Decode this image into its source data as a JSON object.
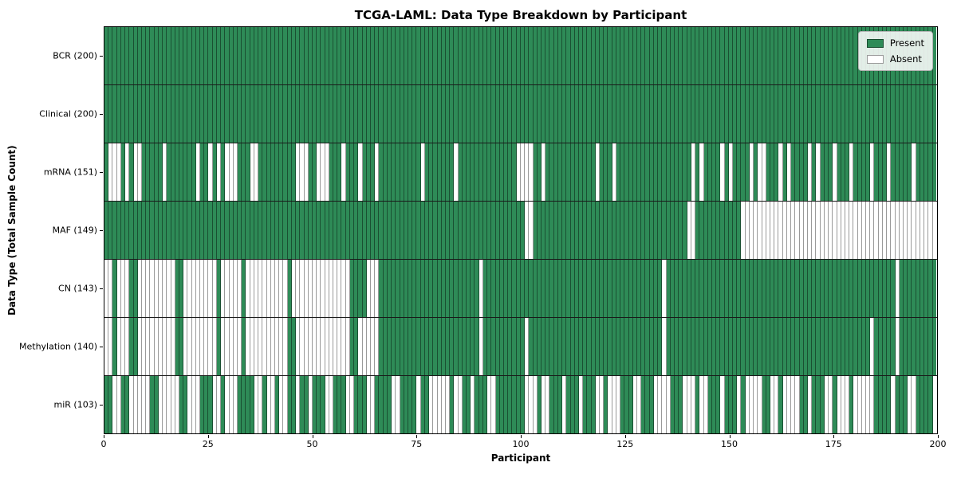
{
  "chart_data": {
    "type": "heatmap",
    "title": "TCGA-LAML: Data Type Breakdown by Participant",
    "xlabel": "Participant",
    "ylabel": "Data Type (Total Sample Count)",
    "x_ticks": [
      0,
      25,
      50,
      75,
      100,
      125,
      150,
      175,
      200
    ],
    "x_range": [
      0,
      200
    ],
    "n_participants": 200,
    "grid": false,
    "legend": {
      "position": "upper right",
      "entries": [
        {
          "label": "Present",
          "color": "#2e8b57"
        },
        {
          "label": "Absent",
          "color": "#ffffff"
        }
      ]
    },
    "colors": {
      "present": "#2e8b57",
      "absent": "#ffffff",
      "present_edge": "rgba(0,0,0,0.42)",
      "absent_edge": "#9a9a9a",
      "row_separator": "#1a1a1a",
      "plot_border": "#000000"
    },
    "value_encoding": {
      "present": 1,
      "absent": 0
    },
    "rows": [
      {
        "name": "BCR",
        "label": "BCR (200)",
        "total_present": 200,
        "absent_participants": []
      },
      {
        "name": "Clinical",
        "label": "Clinical (200)",
        "total_present": 200,
        "absent_participants": []
      },
      {
        "name": "mRNA",
        "label": "mRNA (151)",
        "total_present": 151,
        "absent_participants": [
          1,
          2,
          3,
          5,
          7,
          8,
          14,
          22,
          25,
          27,
          29,
          30,
          31,
          35,
          36,
          46,
          47,
          48,
          51,
          52,
          53,
          57,
          61,
          65,
          76,
          84,
          99,
          100,
          101,
          102,
          105,
          118,
          122,
          141,
          143,
          148,
          150,
          155,
          157,
          158,
          162,
          164,
          169,
          171,
          175,
          179,
          184,
          188,
          194
        ]
      },
      {
        "name": "MAF",
        "label": "MAF (149)",
        "total_present": 149,
        "absent_participants": [
          101,
          102,
          140,
          141,
          153,
          154,
          155,
          156,
          157,
          158,
          159,
          160,
          161,
          162,
          163,
          164,
          165,
          166,
          167,
          168,
          169,
          170,
          171,
          172,
          173,
          174,
          175,
          176,
          177,
          178,
          179,
          180,
          181,
          182,
          183,
          184,
          185,
          186,
          187,
          188,
          189,
          190,
          191,
          192,
          193,
          194,
          195,
          196,
          197,
          198,
          199
        ]
      },
      {
        "name": "CN",
        "label": "CN (143)",
        "total_present": 143,
        "absent_participants": [
          0,
          1,
          3,
          4,
          5,
          8,
          9,
          10,
          11,
          12,
          13,
          14,
          15,
          16,
          19,
          20,
          21,
          22,
          23,
          24,
          25,
          26,
          28,
          29,
          30,
          31,
          32,
          34,
          35,
          36,
          37,
          38,
          39,
          40,
          41,
          42,
          43,
          45,
          46,
          47,
          48,
          49,
          50,
          51,
          52,
          53,
          54,
          55,
          56,
          57,
          58,
          63,
          64,
          65,
          90,
          134,
          190
        ]
      },
      {
        "name": "Methylation",
        "label": "Methylation (140)",
        "total_present": 140,
        "absent_participants": [
          0,
          1,
          3,
          4,
          5,
          8,
          9,
          10,
          11,
          12,
          13,
          14,
          15,
          16,
          19,
          20,
          21,
          22,
          23,
          24,
          25,
          26,
          28,
          29,
          30,
          31,
          32,
          34,
          35,
          36,
          37,
          38,
          39,
          40,
          41,
          42,
          43,
          46,
          47,
          48,
          49,
          50,
          51,
          52,
          53,
          54,
          55,
          56,
          57,
          58,
          61,
          62,
          63,
          64,
          65,
          90,
          101,
          134,
          184,
          190
        ]
      },
      {
        "name": "miR",
        "label": "miR (103)",
        "total_present": 103,
        "absent_participants": [
          2,
          3,
          6,
          7,
          8,
          9,
          10,
          13,
          14,
          15,
          16,
          17,
          20,
          21,
          22,
          26,
          27,
          29,
          30,
          31,
          36,
          37,
          39,
          40,
          42,
          43,
          46,
          49,
          53,
          54,
          58,
          59,
          63,
          64,
          69,
          70,
          75,
          78,
          79,
          80,
          81,
          82,
          84,
          85,
          88,
          92,
          93,
          101,
          102,
          103,
          105,
          106,
          110,
          114,
          118,
          119,
          121,
          122,
          123,
          127,
          128,
          132,
          133,
          134,
          135,
          139,
          140,
          141,
          143,
          144,
          148,
          152,
          154,
          155,
          156,
          157,
          160,
          161,
          163,
          164,
          165,
          166,
          169,
          173,
          174,
          176,
          177,
          178,
          180,
          181,
          182,
          183,
          184,
          189,
          193,
          194,
          199
        ]
      }
    ]
  }
}
